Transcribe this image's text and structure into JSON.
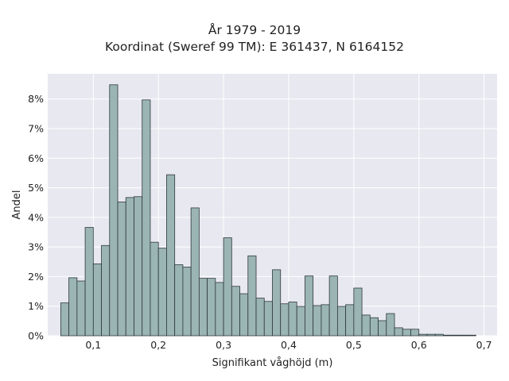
{
  "chart_data": {
    "type": "bar",
    "title": "År 1979 - 2019",
    "subtitle": "Koordinat (Sweref 99 TM): E 361437, N 6164152",
    "xlabel": "Signifikant våghöjd (m)",
    "ylabel": "Andel",
    "xlim": [
      0.03,
      0.72
    ],
    "ylim": [
      0,
      0.0885
    ],
    "x_ticks": [
      0.1,
      0.2,
      0.3,
      0.4,
      0.5,
      0.6,
      0.7
    ],
    "x_tick_labels": [
      "0,1",
      "0,2",
      "0,3",
      "0,4",
      "0,5",
      "0,6",
      "0,7"
    ],
    "y_ticks": [
      0,
      0.01,
      0.02,
      0.03,
      0.04,
      0.05,
      0.06,
      0.07,
      0.08
    ],
    "y_tick_labels": [
      "0%",
      "1%",
      "2%",
      "3%",
      "4%",
      "5%",
      "6%",
      "7%",
      "8%"
    ],
    "grid": true,
    "bin_edges_start": 0.05,
    "bin_width": 0.0125,
    "values": [
      0.0111,
      0.0196,
      0.0185,
      0.0366,
      0.0243,
      0.0305,
      0.0848,
      0.0452,
      0.0467,
      0.047,
      0.0797,
      0.0316,
      0.0296,
      0.0544,
      0.024,
      0.0232,
      0.0432,
      0.0194,
      0.0194,
      0.018,
      0.0331,
      0.0167,
      0.0142,
      0.027,
      0.0127,
      0.0116,
      0.0223,
      0.0108,
      0.0114,
      0.0099,
      0.0202,
      0.0102,
      0.0105,
      0.0202,
      0.0099,
      0.0105,
      0.0161,
      0.007,
      0.0061,
      0.0051,
      0.0075,
      0.0027,
      0.0022,
      0.0022,
      0.0005,
      0.0005,
      0.0005,
      0.0002,
      0.0002,
      0.0002,
      0.0002
    ],
    "colors": {
      "bar_fill": "#9bb4b4",
      "bar_edge": "#2f3a3a",
      "plot_bg": "#e8e8f0",
      "grid": "#ffffff"
    }
  }
}
